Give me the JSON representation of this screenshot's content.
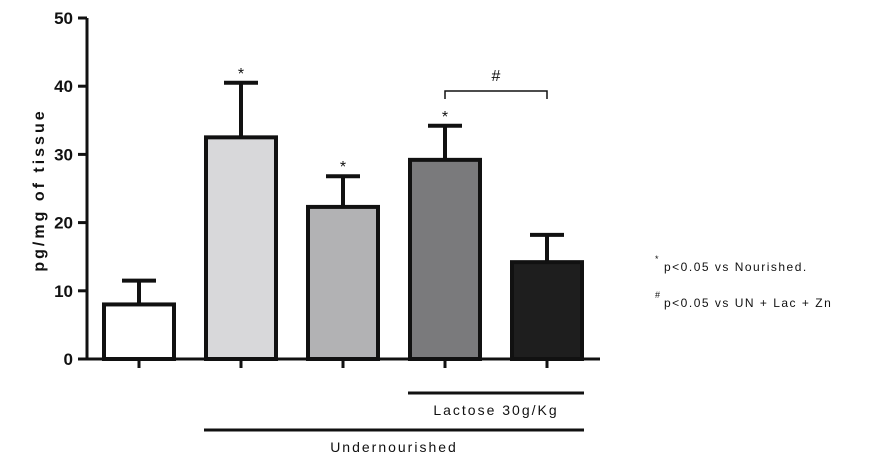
{
  "chart_data": {
    "type": "bar",
    "title": "",
    "xlabel": "",
    "ylabel": "pg/mg of tissue",
    "ylim": [
      0,
      50
    ],
    "yticks": [
      "0",
      "10",
      "20",
      "30",
      "40",
      "50"
    ],
    "grid": false,
    "categories": [
      "",
      "",
      "",
      "",
      ""
    ],
    "values": [
      8,
      32.5,
      22.3,
      29.2,
      14.2
    ],
    "errors": [
      3.5,
      8,
      4.5,
      5,
      4
    ],
    "colors": [
      "#ffffff",
      "#d8d8da",
      "#b2b2b4",
      "#7a7a7c",
      "#1e1e1e"
    ],
    "significance": [
      "",
      "*",
      "*",
      "*",
      ""
    ],
    "bracket": {
      "from": 3,
      "to": 4,
      "label": "#"
    },
    "groups": [
      {
        "label": "Lactose 30g/Kg",
        "from": 3,
        "to": 4
      },
      {
        "label": "Undernourished",
        "from": 1,
        "to": 4
      }
    ],
    "legend": [
      {
        "mark": "*",
        "text": "p<0.05 vs Nourished."
      },
      {
        "mark": "#",
        "text": "p<0.05 vs UN + Lac + Zn"
      }
    ]
  }
}
